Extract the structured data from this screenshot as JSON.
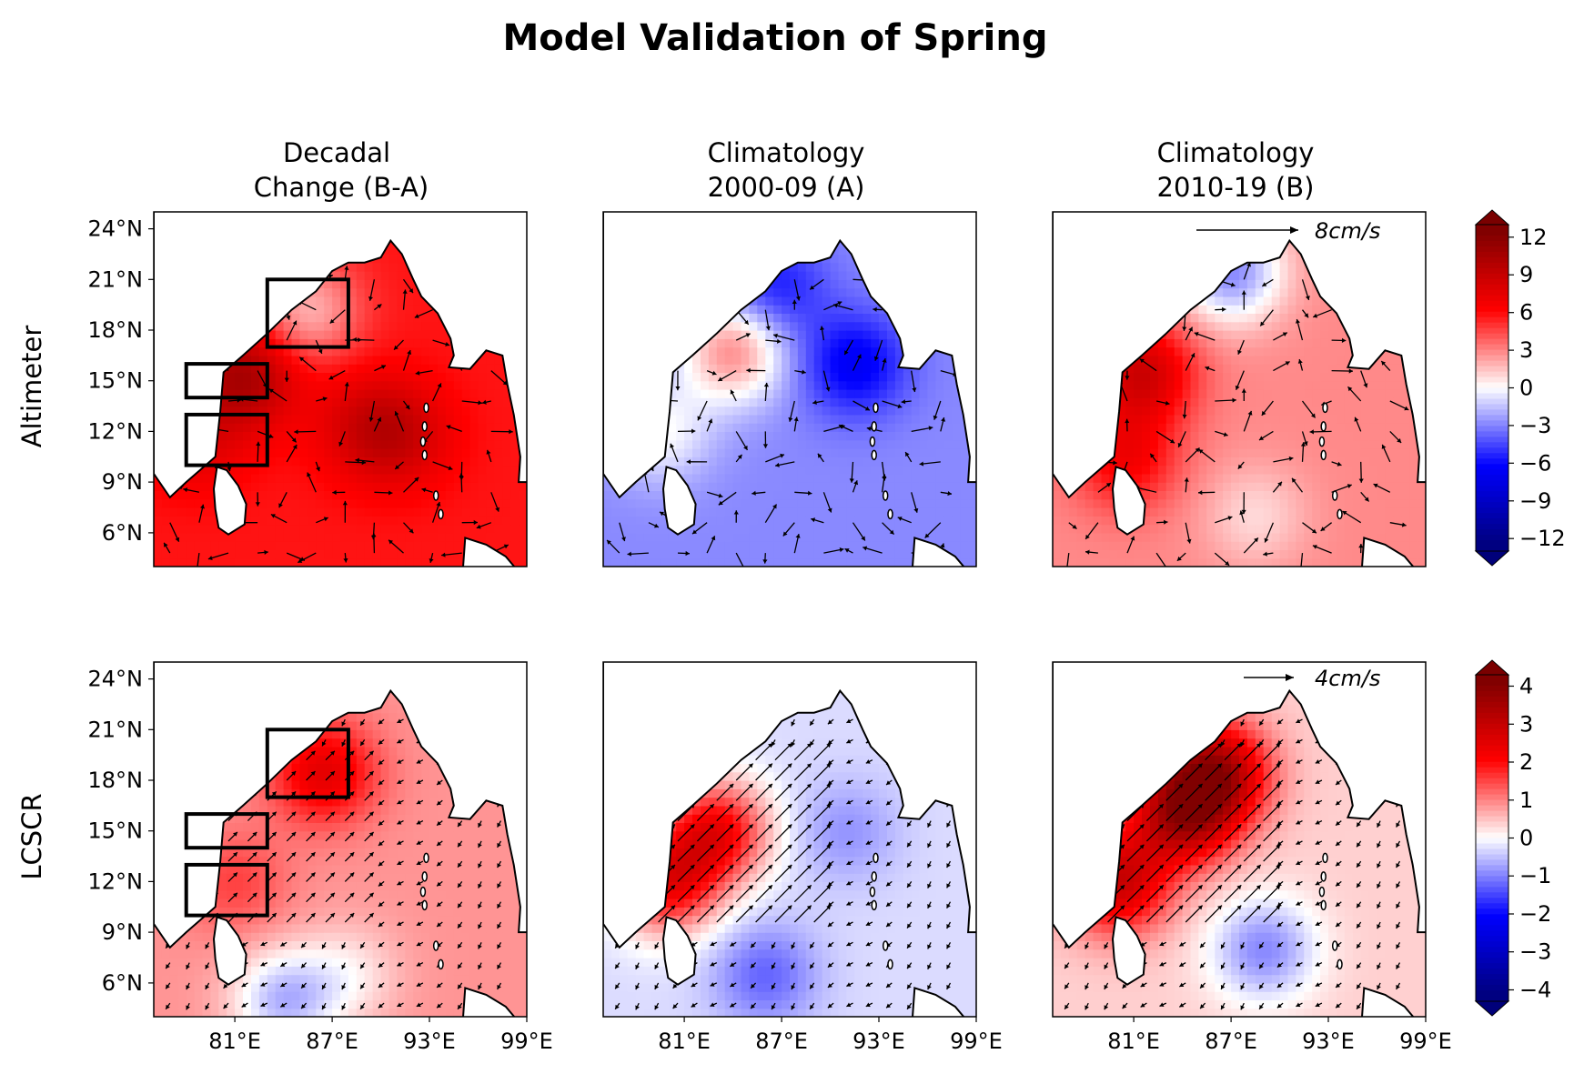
{
  "figure": {
    "title": "Model Validation of Spring",
    "column_titles": [
      [
        "Decadal",
        "Change (B-A)"
      ],
      [
        "Climatology",
        "2000-09 (A)"
      ],
      [
        "Climatology",
        "2010-19 (B)"
      ]
    ],
    "row_labels": [
      "Altimeter",
      "LCSCR"
    ],
    "reference_vectors": [
      "8cm/s",
      "4cm/s"
    ]
  },
  "colors": {
    "map_cmap": "seismic",
    "land": "#ffffff",
    "coastline": "#000000",
    "vectors": "#000000",
    "boxes": "#000000"
  },
  "chart_data": [
    {
      "type": "heatmap",
      "panel": "Altimeter — Decadal Change (B-A)",
      "xlabel": "",
      "ylabel": "Altimeter",
      "xlim": [
        76,
        99
      ],
      "ylim": [
        4,
        25
      ],
      "x_ticks": [
        "81°E",
        "87°E",
        "93°E",
        "99°E"
      ],
      "y_ticks": [
        "6°N",
        "9°N",
        "12°N",
        "15°N",
        "18°N",
        "21°N",
        "24°N"
      ],
      "colorbar": {
        "min": -13,
        "max": 13,
        "ticks": [
          "12",
          "9",
          "6",
          "3",
          "0",
          "−3",
          "−6",
          "−9",
          "−12"
        ]
      },
      "field_base_value": 6,
      "field_centers": [
        {
          "lon": 81.5,
          "lat": 15.3,
          "value": 11
        },
        {
          "lon": 85.5,
          "lat": 19.2,
          "value": 2
        },
        {
          "lon": 89.0,
          "lat": 12.5,
          "value": 8
        },
        {
          "lon": 91.0,
          "lat": 11.8,
          "value": 9
        },
        {
          "lon": 78.5,
          "lat": 11.5,
          "value": 8
        }
      ],
      "boxes": [
        {
          "lon": [
            83,
            88
          ],
          "lat": [
            17,
            21
          ]
        },
        {
          "lon": [
            78,
            83
          ],
          "lat": [
            14,
            16
          ]
        },
        {
          "lon": [
            78,
            83
          ],
          "lat": [
            10,
            13
          ]
        }
      ]
    },
    {
      "type": "heatmap",
      "panel": "Altimeter — Climatology 2000-09 (A)",
      "xlim": [
        76,
        99
      ],
      "ylim": [
        4,
        25
      ],
      "x_ticks": [
        "81°E",
        "87°E",
        "93°E",
        "99°E"
      ],
      "field_base_value": -3,
      "field_centers": [
        {
          "lon": 91.5,
          "lat": 16.0,
          "value": -7
        },
        {
          "lon": 86.5,
          "lat": 20.5,
          "value": -6
        },
        {
          "lon": 84.0,
          "lat": 16.8,
          "value": 3
        },
        {
          "lon": 79.5,
          "lat": 12.0,
          "value": 0
        }
      ]
    },
    {
      "type": "heatmap",
      "panel": "Altimeter — Climatology 2010-19 (B)",
      "xlim": [
        76,
        99
      ],
      "ylim": [
        4,
        25
      ],
      "x_ticks": [
        "81°E",
        "87°E",
        "93°E",
        "99°E"
      ],
      "field_base_value": 3,
      "field_centers": [
        {
          "lon": 81.5,
          "lat": 15.5,
          "value": 9
        },
        {
          "lon": 80.5,
          "lat": 10.5,
          "value": 7
        },
        {
          "lon": 87.0,
          "lat": 21.5,
          "value": -3
        },
        {
          "lon": 88.5,
          "lat": 7.0,
          "value": 1
        }
      ],
      "reference_vector": "8cm/s"
    },
    {
      "type": "heatmap",
      "panel": "LCSCR — Decadal Change (B-A)",
      "xlabel": "",
      "ylabel": "LCSCR",
      "xlim": [
        76,
        99
      ],
      "ylim": [
        4,
        25
      ],
      "x_ticks": [
        "81°E",
        "87°E",
        "93°E",
        "99°E"
      ],
      "y_ticks": [
        "6°N",
        "9°N",
        "12°N",
        "15°N",
        "18°N",
        "21°N",
        "24°N"
      ],
      "colorbar": {
        "min": -4.3,
        "max": 4.3,
        "ticks": [
          "4",
          "3",
          "2",
          "1",
          "0",
          "−1",
          "−2",
          "−3",
          "−4"
        ]
      },
      "field_base_value": 0.9,
      "field_centers": [
        {
          "lon": 86.5,
          "lat": 18.5,
          "value": 2.6
        },
        {
          "lon": 81.0,
          "lat": 12.0,
          "value": 1.6
        },
        {
          "lon": 88.0,
          "lat": 6.5,
          "value": 0.2
        },
        {
          "lon": 84.0,
          "lat": 5.0,
          "value": -0.6
        }
      ],
      "boxes": [
        {
          "lon": [
            83,
            88
          ],
          "lat": [
            17,
            21
          ]
        },
        {
          "lon": [
            78,
            83
          ],
          "lat": [
            14,
            16
          ]
        },
        {
          "lon": [
            78,
            83
          ],
          "lat": [
            10,
            13
          ]
        }
      ]
    },
    {
      "type": "heatmap",
      "panel": "LCSCR — Climatology 2000-09 (A)",
      "xlim": [
        76,
        99
      ],
      "ylim": [
        4,
        25
      ],
      "x_ticks": [
        "81°E",
        "87°E",
        "93°E",
        "99°E"
      ],
      "field_base_value": -0.3,
      "field_centers": [
        {
          "lon": 83.0,
          "lat": 15.0,
          "value": 2.3
        },
        {
          "lon": 80.0,
          "lat": 12.0,
          "value": 2.3
        },
        {
          "lon": 91.0,
          "lat": 15.0,
          "value": -0.9
        },
        {
          "lon": 86.0,
          "lat": 6.5,
          "value": -1.3
        }
      ]
    },
    {
      "type": "heatmap",
      "panel": "LCSCR — Climatology 2010-19 (B)",
      "xlim": [
        76,
        99
      ],
      "ylim": [
        4,
        25
      ],
      "x_ticks": [
        "81°E",
        "87°E",
        "93°E",
        "99°E"
      ],
      "field_base_value": 0.4,
      "field_centers": [
        {
          "lon": 84.0,
          "lat": 16.0,
          "value": 3.4
        },
        {
          "lon": 86.0,
          "lat": 18.5,
          "value": 3.6
        },
        {
          "lon": 80.0,
          "lat": 12.0,
          "value": 3.0
        },
        {
          "lon": 89.0,
          "lat": 8.0,
          "value": -1.0
        }
      ],
      "reference_vector": "4cm/s"
    }
  ]
}
